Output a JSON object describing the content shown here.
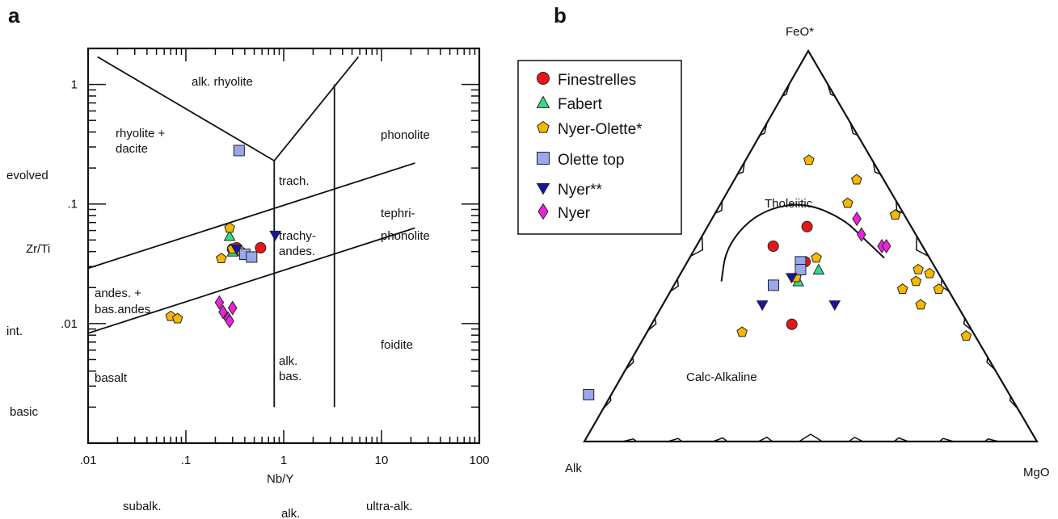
{
  "chart_data": [
    {
      "type": "scatter",
      "panel": "a",
      "xlabel": "Nb/Y",
      "ylabel": "Zr/Ti",
      "x_scale": "log",
      "y_scale": "log",
      "xlim": [
        0.01,
        100
      ],
      "ylim": [
        0.001,
        2
      ],
      "x_ticks": [
        {
          "value": 0.01,
          "label": ".01"
        },
        {
          "value": 0.1,
          "label": ".1"
        },
        {
          "value": 1,
          "label": "1"
        },
        {
          "value": 10,
          "label": "10"
        },
        {
          "value": 100,
          "label": "100"
        }
      ],
      "y_ticks": [
        {
          "value": 0.01,
          "label": ".01"
        },
        {
          "value": 0.1,
          "label": ".1"
        },
        {
          "value": 1,
          "label": "1"
        }
      ],
      "side_labels": [
        "evolved",
        "int.",
        "basic"
      ],
      "bottom_labels": [
        "subalk.",
        "alk.",
        "ultra-alk."
      ],
      "field_labels": [
        {
          "text": "alk. rhyolite"
        },
        {
          "text": "rhyolite +"
        },
        {
          "text": "dacite"
        },
        {
          "text": "phonolite"
        },
        {
          "text": "trach."
        },
        {
          "text": "tephri-"
        },
        {
          "text": "phonolite"
        },
        {
          "text": "trachy-"
        },
        {
          "text": "andes."
        },
        {
          "text": "andes. +"
        },
        {
          "text": "bas.andes."
        },
        {
          "text": "alk."
        },
        {
          "text": "bas."
        },
        {
          "text": "foidite"
        },
        {
          "text": "basalt"
        }
      ],
      "boundaries": [
        {
          "points": [
            [
              0.0125,
              1.7
            ],
            [
              0.8,
              0.23
            ]
          ]
        },
        {
          "points": [
            [
              0.8,
              0.23
            ],
            [
              5.8,
              1.7
            ]
          ]
        },
        {
          "points": [
            [
              0.8,
              0.23
            ],
            [
              0.8,
              0.002
            ]
          ]
        },
        {
          "points": [
            [
              3.3,
              1.0
            ],
            [
              3.3,
              0.002
            ]
          ]
        },
        {
          "points": [
            [
              0.01,
              0.029
            ],
            [
              22,
              0.22
            ]
          ]
        },
        {
          "points": [
            [
              0.01,
              0.0083
            ],
            [
              22,
              0.063
            ]
          ]
        }
      ],
      "series": [
        {
          "name": "Finestrelles",
          "marker": "circle",
          "color": "#e8161b",
          "points": [
            [
              0.3,
              0.042
            ],
            [
              0.33,
              0.043
            ],
            [
              0.58,
              0.043
            ]
          ]
        },
        {
          "name": "Fabert",
          "marker": "triangle",
          "color": "#33dd88",
          "points": [
            [
              0.28,
              0.054
            ],
            [
              0.3,
              0.04
            ]
          ]
        },
        {
          "name": "Nyer-Olette*",
          "marker": "pentagon",
          "color": "#f5b800",
          "points": [
            [
              0.28,
              0.063
            ],
            [
              0.23,
              0.035
            ],
            [
              0.3,
              0.042
            ],
            [
              0.37,
              0.04
            ],
            [
              0.07,
              0.0115
            ],
            [
              0.082,
              0.011
            ]
          ]
        },
        {
          "name": "Olette top",
          "marker": "square",
          "color": "#9aa6ee",
          "points": [
            [
              0.35,
              0.28
            ],
            [
              0.4,
              0.038
            ],
            [
              0.47,
              0.036
            ]
          ]
        },
        {
          "name": "Nyer**",
          "marker": "tri-down",
          "color": "#1515a8",
          "points": [
            [
              0.33,
              0.042
            ],
            [
              0.82,
              0.055
            ]
          ]
        },
        {
          "name": "Nyer",
          "marker": "diamond",
          "color": "#ee22dd",
          "points": [
            [
              0.22,
              0.015
            ],
            [
              0.24,
              0.0125
            ],
            [
              0.27,
              0.011
            ],
            [
              0.3,
              0.0135
            ],
            [
              0.28,
              0.0105
            ]
          ]
        }
      ]
    },
    {
      "type": "ternary",
      "panel": "b",
      "apex_labels": {
        "top": "FeO*",
        "left": "Alk",
        "right": "MgO"
      },
      "region_labels": [
        "Tholeiitic",
        "Calc-Alkaline"
      ],
      "point_order": "[Alk, FeO*, MgO] fractions",
      "boundary_curve": [
        [
          0.49,
          0.41,
          0.1
        ],
        [
          0.44,
          0.49,
          0.07
        ],
        [
          0.36,
          0.56,
          0.08
        ],
        [
          0.28,
          0.6,
          0.12
        ],
        [
          0.2,
          0.61,
          0.19
        ],
        [
          0.14,
          0.57,
          0.29
        ],
        [
          0.12,
          0.52,
          0.36
        ],
        [
          0.1,
          0.47,
          0.43
        ]
      ],
      "legend": [
        "Finestrelles",
        "Fabert",
        "Nyer-Olette*",
        "Olette top",
        "Nyer**",
        "Nyer"
      ],
      "series": [
        {
          "name": "Finestrelles",
          "marker": "circle",
          "color": "#e8161b",
          "points": [
            [
              0.33,
              0.5,
              0.17
            ],
            [
              0.28,
              0.46,
              0.26
            ],
            [
              0.23,
              0.55,
              0.22
            ],
            [
              0.39,
              0.3,
              0.31
            ]
          ]
        },
        {
          "name": "Fabert",
          "marker": "triangle",
          "color": "#33dd88",
          "points": [
            [
              0.26,
              0.44,
              0.3
            ],
            [
              0.32,
              0.41,
              0.27
            ]
          ]
        },
        {
          "name": "Nyer-Olette*",
          "marker": "pentagon",
          "color": "#f5b800",
          "points": [
            [
              0.14,
              0.72,
              0.14
            ],
            [
              0.06,
              0.67,
              0.27
            ],
            [
              0.11,
              0.61,
              0.28
            ],
            [
              0.02,
              0.58,
              0.4
            ],
            [
              0.02,
              0.58,
              0.4
            ],
            [
              0.25,
              0.47,
              0.28
            ],
            [
              0.3,
              0.44,
              0.26
            ],
            [
              0.32,
              0.42,
              0.26
            ],
            [
              0.51,
              0.28,
              0.21
            ],
            [
              0.06,
              0.41,
              0.53
            ],
            [
              0.04,
              0.44,
              0.52
            ],
            [
              0.02,
              0.43,
              0.55
            ],
            [
              0.02,
              0.39,
              0.59
            ],
            [
              0.1,
              0.39,
              0.51
            ],
            [
              0.08,
              0.35,
              0.57
            ],
            [
              0.02,
              0.27,
              0.71
            ]
          ]
        },
        {
          "name": "Olette top",
          "marker": "square",
          "color": "#9aa6ee",
          "points": [
            [
              0.29,
              0.46,
              0.25
            ],
            [
              0.3,
              0.44,
              0.26
            ],
            [
              0.38,
              0.4,
              0.22
            ],
            [
              0.93,
              0.12,
              -0.05
            ]
          ]
        },
        {
          "name": "Nyer**",
          "marker": "tri-down",
          "color": "#1515a8",
          "points": [
            [
              0.33,
              0.42,
              0.25
            ],
            [
              0.43,
              0.35,
              0.22
            ],
            [
              0.27,
              0.35,
              0.38
            ]
          ]
        },
        {
          "name": "Nyer",
          "marker": "diamond",
          "color": "#ee22dd",
          "points": [
            [
              0.11,
              0.57,
              0.32
            ],
            [
              0.12,
              0.53,
              0.35
            ],
            [
              0.09,
              0.5,
              0.41
            ],
            [
              0.08,
              0.5,
              0.42
            ]
          ]
        }
      ]
    }
  ]
}
